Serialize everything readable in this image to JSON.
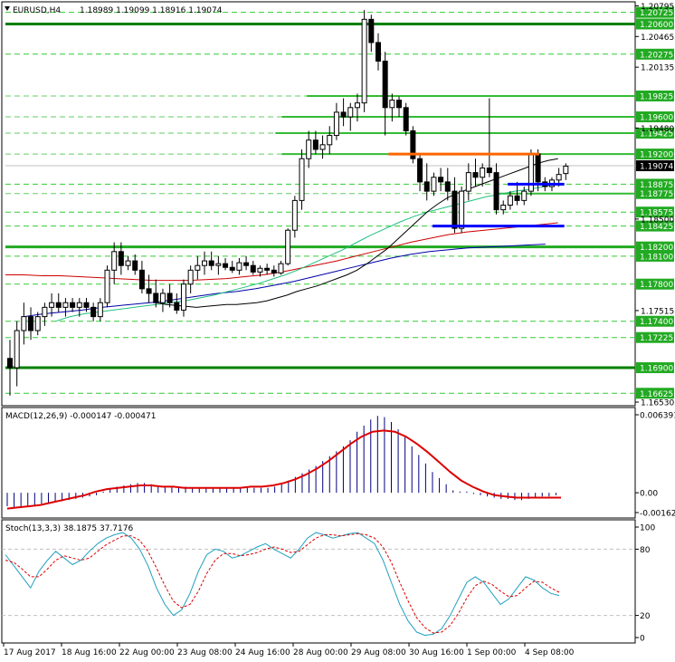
{
  "header": {
    "symbol": "EURUSD,H4",
    "ohlc": "1.18989 1.19099 1.18916 1.19074"
  },
  "macd_label": "MACD(12,26,9) -0.000147 -0.000471",
  "stoch_label": "Stoch(13,3,3) 38.1875 37.7176",
  "price_axis": {
    "min": 1.1653,
    "max": 1.2078,
    "ticks": [
      {
        "v": 1.20795,
        "label": "1.20795",
        "tag": false
      },
      {
        "v": 1.20465,
        "label": "1.20465",
        "tag": false
      },
      {
        "v": 1.20135,
        "label": "1.20135",
        "tag": false
      },
      {
        "v": 1.1948,
        "label": "1.19480",
        "tag": false
      },
      {
        "v": 1.185,
        "label": "1.18500",
        "tag": false
      },
      {
        "v": 1.17515,
        "label": "1.17515",
        "tag": false
      },
      {
        "v": 1.1653,
        "label": "1.16530",
        "tag": false
      }
    ],
    "current": {
      "v": 1.19074,
      "label": "1.19074"
    }
  },
  "levels": [
    {
      "v": 1.206,
      "label": "1.20600",
      "kind": "strong",
      "x0": 0.0
    },
    {
      "v": 1.20725,
      "label": "1.20725",
      "kind": "tag",
      "x0": 0.0
    },
    {
      "v": 1.20275,
      "label": "1.20275",
      "kind": "tag",
      "x0": 0.0
    },
    {
      "v": 1.19825,
      "label": "1.19825",
      "kind": "seg",
      "x0": 0.48
    },
    {
      "v": 1.196,
      "label": "1.19600",
      "kind": "seg",
      "x0": 0.44
    },
    {
      "v": 1.19425,
      "label": "1.19425",
      "kind": "seg",
      "x0": 0.43
    },
    {
      "v": 1.192,
      "label": "1.19200",
      "kind": "seg",
      "x0": 0.44
    },
    {
      "v": 1.18875,
      "label": "1.18875",
      "kind": "tag",
      "x0": 0.0
    },
    {
      "v": 1.18775,
      "label": "1.18775",
      "kind": "seg",
      "x0": 0.78
    },
    {
      "v": 1.18575,
      "label": "1.18575",
      "kind": "tag",
      "x0": 0.0
    },
    {
      "v": 1.18425,
      "label": "1.18425",
      "kind": "tag",
      "x0": 0.0
    },
    {
      "v": 1.182,
      "label": "1.18200",
      "kind": "strong2",
      "x0": 0.0
    },
    {
      "v": 1.181,
      "label": "1.18100",
      "kind": "tag",
      "x0": 0.0
    },
    {
      "v": 1.178,
      "label": "1.17800",
      "kind": "tag",
      "x0": 0.0
    },
    {
      "v": 1.174,
      "label": "1.17400",
      "kind": "tag",
      "x0": 0.0
    },
    {
      "v": 1.17225,
      "label": "1.17225",
      "kind": "tag",
      "x0": 0.0
    },
    {
      "v": 1.169,
      "label": "1.16900",
      "kind": "strong",
      "x0": 0.0
    },
    {
      "v": 1.16625,
      "label": "1.16625",
      "kind": "tag",
      "x0": 0.0
    }
  ],
  "special_lines": [
    {
      "v": 1.192,
      "color": "#ff6600",
      "x0": 0.61,
      "x1": 0.85
    },
    {
      "v": 1.18875,
      "color": "#0000ff",
      "x0": 0.8,
      "x1": 0.89
    },
    {
      "v": 1.18425,
      "color": "#0000ff",
      "x0": 0.68,
      "x1": 0.89
    }
  ],
  "time_labels": [
    "17 Aug 2017",
    "18 Aug 16:00",
    "22 Aug 00:00",
    "23 Aug 08:00",
    "24 Aug 16:00",
    "28 Aug 00:00",
    "29 Aug 08:00",
    "30 Aug 16:00",
    "1 Sep 00:00",
    "4 Sep 08:00"
  ],
  "macd_axis": [
    {
      "v": 0.006391,
      "label": "0.006391"
    },
    {
      "v": 0.0,
      "label": "0.00"
    },
    {
      "v": -0.001623,
      "label": "-0.001623"
    }
  ],
  "stoch_axis": [
    {
      "v": 100,
      "label": "100"
    },
    {
      "v": 80,
      "label": "80"
    },
    {
      "v": 20,
      "label": "20"
    },
    {
      "v": 0,
      "label": "0"
    }
  ],
  "chart_data": {
    "type": "candlestick",
    "candles": [
      [
        1.17,
        1.172,
        1.166,
        1.169
      ],
      [
        1.169,
        1.174,
        1.167,
        1.173
      ],
      [
        1.173,
        1.176,
        1.1715,
        1.1745
      ],
      [
        1.1745,
        1.1755,
        1.172,
        1.173
      ],
      [
        1.173,
        1.175,
        1.1725,
        1.1745
      ],
      [
        1.1745,
        1.176,
        1.1735,
        1.1755
      ],
      [
        1.1755,
        1.177,
        1.1745,
        1.176
      ],
      [
        1.176,
        1.177,
        1.175,
        1.1755
      ],
      [
        1.1755,
        1.1765,
        1.1745,
        1.176
      ],
      [
        1.176,
        1.1765,
        1.175,
        1.1755
      ],
      [
        1.1755,
        1.1765,
        1.1745,
        1.176
      ],
      [
        1.176,
        1.1765,
        1.175,
        1.1755
      ],
      [
        1.1755,
        1.176,
        1.174,
        1.1745
      ],
      [
        1.1745,
        1.1765,
        1.174,
        1.176
      ],
      [
        1.176,
        1.18,
        1.1755,
        1.1795
      ],
      [
        1.1795,
        1.1825,
        1.178,
        1.1815
      ],
      [
        1.1815,
        1.1825,
        1.179,
        1.18
      ],
      [
        1.18,
        1.181,
        1.1795,
        1.1805
      ],
      [
        1.1805,
        1.1812,
        1.179,
        1.1795
      ],
      [
        1.1795,
        1.1805,
        1.177,
        1.1775
      ],
      [
        1.1775,
        1.179,
        1.176,
        1.177
      ],
      [
        1.177,
        1.1785,
        1.1755,
        1.176
      ],
      [
        1.176,
        1.1775,
        1.175,
        1.177
      ],
      [
        1.177,
        1.178,
        1.1755,
        1.176
      ],
      [
        1.176,
        1.177,
        1.1748,
        1.1752
      ],
      [
        1.1752,
        1.1785,
        1.1745,
        1.178
      ],
      [
        1.178,
        1.18,
        1.177,
        1.1795
      ],
      [
        1.1795,
        1.181,
        1.1785,
        1.18
      ],
      [
        1.18,
        1.1815,
        1.179,
        1.1805
      ],
      [
        1.1805,
        1.1815,
        1.1795,
        1.18
      ],
      [
        1.18,
        1.181,
        1.179,
        1.1802
      ],
      [
        1.1802,
        1.1808,
        1.1795,
        1.1798
      ],
      [
        1.1798,
        1.1805,
        1.1792,
        1.1795
      ],
      [
        1.1795,
        1.1808,
        1.179,
        1.1803
      ],
      [
        1.1803,
        1.181,
        1.1795,
        1.18
      ],
      [
        1.18,
        1.1805,
        1.179,
        1.1793
      ],
      [
        1.1793,
        1.18,
        1.1788,
        1.1797
      ],
      [
        1.1797,
        1.1802,
        1.179,
        1.1795
      ],
      [
        1.1795,
        1.18,
        1.1788,
        1.1792
      ],
      [
        1.1792,
        1.1805,
        1.179,
        1.1802
      ],
      [
        1.1802,
        1.184,
        1.18,
        1.1838
      ],
      [
        1.1838,
        1.1875,
        1.183,
        1.187
      ],
      [
        1.187,
        1.1925,
        1.186,
        1.1915
      ],
      [
        1.1915,
        1.1945,
        1.1905,
        1.1935
      ],
      [
        1.1935,
        1.1945,
        1.192,
        1.1925
      ],
      [
        1.1925,
        1.194,
        1.1915,
        1.193
      ],
      [
        1.193,
        1.195,
        1.192,
        1.194
      ],
      [
        1.194,
        1.1975,
        1.1935,
        1.1965
      ],
      [
        1.1965,
        1.198,
        1.195,
        1.196
      ],
      [
        1.196,
        1.1975,
        1.1945,
        1.197
      ],
      [
        1.197,
        1.1985,
        1.1955,
        1.1975
      ],
      [
        1.1975,
        1.2075,
        1.1965,
        1.2065
      ],
      [
        1.2065,
        1.207,
        1.203,
        1.204
      ],
      [
        1.204,
        1.205,
        1.201,
        1.202
      ],
      [
        1.202,
        1.203,
        1.194,
        1.197
      ],
      [
        1.197,
        1.1985,
        1.1955,
        1.1978
      ],
      [
        1.1978,
        1.1982,
        1.196,
        1.197
      ],
      [
        1.197,
        1.1975,
        1.194,
        1.1945
      ],
      [
        1.1945,
        1.195,
        1.191,
        1.1915
      ],
      [
        1.1915,
        1.192,
        1.188,
        1.189
      ],
      [
        1.189,
        1.191,
        1.187,
        1.188
      ],
      [
        1.188,
        1.19,
        1.1875,
        1.1895
      ],
      [
        1.1895,
        1.1905,
        1.188,
        1.189
      ],
      [
        1.189,
        1.1905,
        1.187,
        1.188
      ],
      [
        1.188,
        1.1895,
        1.1835,
        1.184
      ],
      [
        1.184,
        1.1885,
        1.1835,
        1.188
      ],
      [
        1.188,
        1.191,
        1.187,
        1.19
      ],
      [
        1.19,
        1.1915,
        1.1885,
        1.1895
      ],
      [
        1.1895,
        1.191,
        1.1885,
        1.1905
      ],
      [
        1.1905,
        1.198,
        1.1895,
        1.19
      ],
      [
        1.19,
        1.191,
        1.1855,
        1.186
      ],
      [
        1.186,
        1.187,
        1.1855,
        1.1865
      ],
      [
        1.1865,
        1.188,
        1.186,
        1.1875
      ],
      [
        1.1875,
        1.189,
        1.1865,
        1.187
      ],
      [
        1.187,
        1.1885,
        1.1865,
        1.188
      ],
      [
        1.188,
        1.1925,
        1.1875,
        1.192
      ],
      [
        1.192,
        1.1925,
        1.188,
        1.189
      ],
      [
        1.189,
        1.1895,
        1.188,
        1.1885
      ],
      [
        1.1885,
        1.1895,
        1.188,
        1.1892
      ],
      [
        1.1892,
        1.1905,
        1.1885,
        1.1898
      ],
      [
        1.1899,
        1.191,
        1.1892,
        1.1907
      ]
    ],
    "ma_fast": [
      1.176,
      1.1758,
      1.1757,
      1.1756,
      1.1755,
      1.1756,
      1.1757,
      1.1758,
      1.1758,
      1.1759,
      1.176,
      1.1762,
      1.1765,
      1.1768,
      1.1772,
      1.1775,
      1.1778,
      1.1782,
      1.1786,
      1.179,
      1.1795,
      1.1802,
      1.181,
      1.1818,
      1.1828,
      1.1838,
      1.1848,
      1.1858,
      1.1866,
      1.1873,
      1.1878,
      1.1882,
      1.1886,
      1.189,
      1.1894,
      1.1898,
      1.1902,
      1.1906,
      1.191,
      1.1913,
      1.1915
    ],
    "ma_mid": [
      1.174,
      1.1745,
      1.1748,
      1.175,
      1.1752,
      1.1754,
      1.1756,
      1.1758,
      1.176,
      1.1762,
      1.1765,
      1.1768,
      1.1772,
      1.1776,
      1.178,
      1.1785,
      1.179,
      1.1796,
      1.1803,
      1.181,
      1.1817,
      1.1825,
      1.1833,
      1.184,
      1.1847,
      1.1853,
      1.1858,
      1.1862,
      1.1866,
      1.187,
      1.1874,
      1.1877,
      1.188,
      1.1882,
      1.1885,
      1.1887
    ],
    "ma_slow_red": [
      1.179,
      1.179,
      1.1789,
      1.1789,
      1.1788,
      1.1787,
      1.1786,
      1.1785,
      1.1784,
      1.1784,
      1.1784,
      1.1785,
      1.1786,
      1.1788,
      1.179,
      1.1793,
      1.1797,
      1.1801,
      1.1805,
      1.181,
      1.1815,
      1.182,
      1.1825,
      1.1829,
      1.1833,
      1.1836,
      1.1838,
      1.184,
      1.1842,
      1.1844,
      1.1846
    ],
    "ma_slow_blue": [
      1.1745,
      1.1748,
      1.175,
      1.1752,
      1.1755,
      1.1757,
      1.1759,
      1.1761,
      1.1764,
      1.1767,
      1.177,
      1.1772,
      1.1775,
      1.1779,
      1.1783,
      1.1788,
      1.1793,
      1.1798,
      1.1803,
      1.1808,
      1.1812,
      1.1815,
      1.1817,
      1.1819,
      1.182,
      1.1821,
      1.1822,
      1.1823
    ],
    "macd_hist": [
      -0.0011,
      -0.0012,
      -0.0012,
      -0.0011,
      -0.001,
      -0.0009,
      -0.0009,
      -0.0008,
      -0.0007,
      -0.0006,
      -0.0005,
      -0.0004,
      -0.0003,
      -0.0002,
      0.0001,
      0.0003,
      0.0005,
      0.0006,
      0.0007,
      0.0008,
      0.0008,
      0.0007,
      0.0006,
      0.0005,
      0.0005,
      0.0005,
      0.0005,
      0.0004,
      0.0004,
      0.0004,
      0.0004,
      0.0004,
      0.0004,
      0.0004,
      0.0004,
      0.0004,
      0.0004,
      0.0004,
      0.0004,
      0.0005,
      0.0007,
      0.001,
      0.0013,
      0.0016,
      0.0019,
      0.0022,
      0.0026,
      0.003,
      0.0034,
      0.0038,
      0.0043,
      0.005,
      0.0055,
      0.006,
      0.0063,
      0.0062,
      0.0058,
      0.0052,
      0.0046,
      0.0038,
      0.0031,
      0.0024,
      0.0017,
      0.0012,
      0.0007,
      0.0002,
      0.0001,
      0.0001,
      -0.0001,
      -0.0002,
      -0.0003,
      -0.0004,
      -0.0005,
      -0.0005,
      -0.0006,
      -0.0006,
      -0.0005,
      -0.0004,
      -0.0003,
      -0.0003,
      -0.0002
    ],
    "macd_signal": [
      -0.0013,
      -0.0012,
      -0.0011,
      -0.001,
      -0.0008,
      -0.0006,
      -0.0004,
      -0.0002,
      0.0001,
      0.0003,
      0.0004,
      0.0005,
      0.0006,
      0.0006,
      0.0005,
      0.0005,
      0.0004,
      0.0004,
      0.0004,
      0.0004,
      0.0004,
      0.0004,
      0.0005,
      0.0005,
      0.0006,
      0.0008,
      0.0011,
      0.0015,
      0.002,
      0.0026,
      0.0033,
      0.004,
      0.0046,
      0.005,
      0.0051,
      0.005,
      0.0046,
      0.004,
      0.0033,
      0.0025,
      0.0017,
      0.001,
      0.0005,
      0.0001,
      -0.0002,
      -0.0003,
      -0.0004,
      -0.0004,
      -0.0004,
      -0.0004,
      -0.0004
    ],
    "stoch_main": [
      75,
      65,
      55,
      45,
      60,
      70,
      78,
      72,
      66,
      70,
      78,
      85,
      90,
      93,
      95,
      90,
      80,
      65,
      45,
      30,
      20,
      25,
      40,
      60,
      75,
      80,
      78,
      72,
      74,
      78,
      82,
      85,
      80,
      76,
      72,
      80,
      90,
      95,
      93,
      90,
      92,
      94,
      95,
      90,
      85,
      70,
      50,
      30,
      15,
      5,
      2,
      3,
      8,
      20,
      35,
      50,
      55,
      50,
      40,
      30,
      35,
      45,
      55,
      52,
      45,
      40,
      38
    ],
    "stoch_signal": [
      70,
      68,
      62,
      55,
      55,
      62,
      70,
      74,
      72,
      70,
      72,
      78,
      84,
      88,
      92,
      92,
      88,
      78,
      63,
      47,
      33,
      27,
      30,
      42,
      58,
      70,
      76,
      76,
      74,
      75,
      77,
      80,
      82,
      80,
      77,
      78,
      84,
      90,
      93,
      93,
      92,
      93,
      94,
      93,
      90,
      82,
      68,
      50,
      33,
      18,
      9,
      4,
      5,
      11,
      22,
      36,
      47,
      51,
      48,
      42,
      37,
      38,
      45,
      51,
      50,
      45,
      41
    ]
  }
}
